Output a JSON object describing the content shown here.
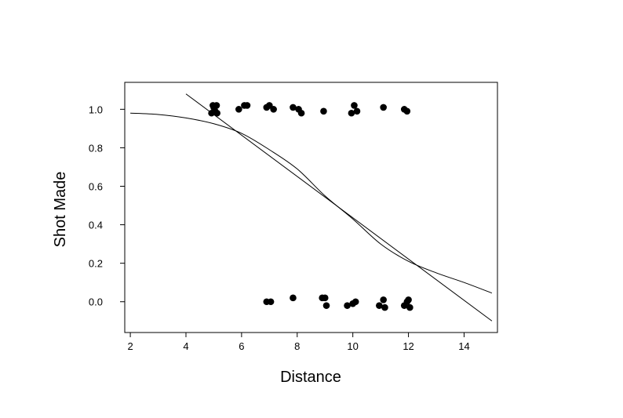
{
  "chart_data": {
    "type": "scatter",
    "xlabel": "Distance",
    "ylabel": "Shot Made",
    "xlim": [
      1.8,
      15.2
    ],
    "ylim": [
      -0.16,
      1.14
    ],
    "x_ticks": [
      2,
      4,
      6,
      8,
      10,
      12,
      14
    ],
    "y_ticks": [
      0.0,
      0.2,
      0.4,
      0.6,
      0.8,
      1.0
    ],
    "x_tick_labels": [
      "2",
      "4",
      "6",
      "8",
      "10",
      "12",
      "14"
    ],
    "y_tick_labels": [
      "0.0",
      "0.2",
      "0.4",
      "0.6",
      "0.8",
      "1.0"
    ],
    "grid": false,
    "series": [
      {
        "kind": "points",
        "color": "#000000",
        "points": [
          [
            4.92,
            0.98
          ],
          [
            5.0,
            1.01
          ],
          [
            5.05,
            0.99
          ],
          [
            5.1,
            1.02
          ],
          [
            4.97,
            1.02
          ],
          [
            5.12,
            0.98
          ],
          [
            5.9,
            1.0
          ],
          [
            6.1,
            1.02
          ],
          [
            6.2,
            1.02
          ],
          [
            6.9,
            1.01
          ],
          [
            7.0,
            1.02
          ],
          [
            7.15,
            1.0
          ],
          [
            7.85,
            1.01
          ],
          [
            8.05,
            1.0
          ],
          [
            8.15,
            0.98
          ],
          [
            8.95,
            0.99
          ],
          [
            9.95,
            0.98
          ],
          [
            10.05,
            1.02
          ],
          [
            10.15,
            0.99
          ],
          [
            11.1,
            1.01
          ],
          [
            11.85,
            1.0
          ],
          [
            11.95,
            0.99
          ],
          [
            6.9,
            0.0
          ],
          [
            7.05,
            0.0
          ],
          [
            7.85,
            0.02
          ],
          [
            8.9,
            0.02
          ],
          [
            9.0,
            0.02
          ],
          [
            9.05,
            -0.02
          ],
          [
            9.8,
            -0.02
          ],
          [
            10.0,
            -0.01
          ],
          [
            10.1,
            0.0
          ],
          [
            10.95,
            -0.02
          ],
          [
            11.1,
            0.01
          ],
          [
            11.15,
            -0.03
          ],
          [
            11.85,
            -0.02
          ],
          [
            11.95,
            0.0
          ],
          [
            12.0,
            0.01
          ],
          [
            12.05,
            -0.03
          ]
        ]
      },
      {
        "kind": "line",
        "color": "#000000",
        "x": [
          4.0,
          15.0
        ],
        "y": [
          1.08,
          -0.1
        ]
      },
      {
        "kind": "curve",
        "color": "#000000",
        "x": [
          2,
          3,
          4,
          5,
          6,
          7,
          8,
          9,
          10,
          11,
          12,
          13,
          14,
          15
        ],
        "y": [
          0.98,
          0.973,
          0.955,
          0.925,
          0.875,
          0.79,
          0.69,
          0.55,
          0.43,
          0.3,
          0.21,
          0.15,
          0.1,
          0.045
        ]
      }
    ]
  }
}
